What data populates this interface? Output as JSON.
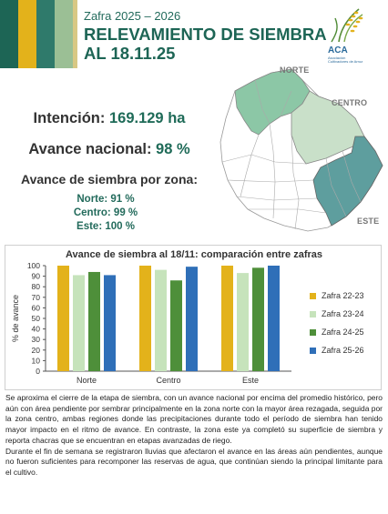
{
  "header": {
    "kicker": "Zafra 2025 – 2026",
    "title_line1": "RELEVAMIENTO DE SIEMBRA",
    "title_line2": "AL 18.11.25",
    "stripe_colors": [
      "#1d6555",
      "#e3b21b",
      "#2f7a6b",
      "#9bbf95",
      "#d8c884"
    ]
  },
  "logo": {
    "text": "ACA",
    "subtext": "Asociación Cultivadores de Arroz"
  },
  "summary": {
    "intencion_label": "Intención:",
    "intencion_value": "169.129 ha",
    "avance_label": "Avance nacional:",
    "avance_value": "98 %"
  },
  "zones": {
    "title": "Avance de siembra por zona:",
    "items": [
      {
        "label": "Norte: 91 %"
      },
      {
        "label": "Centro: 99 %"
      },
      {
        "label": "Este: 100 %"
      }
    ]
  },
  "map": {
    "labels": {
      "norte": "NORTE",
      "centro": "CENTRO",
      "este": "ESTE"
    },
    "colors": {
      "norte": "#8cc7a6",
      "centro": "#c9e0c9",
      "este": "#5e9e9e",
      "rest": "#ffffff"
    }
  },
  "chart_data": {
    "type": "bar",
    "title": "Avance de siembra al 18/11: comparación entre zafras",
    "ylabel": "% de avance",
    "xlabel": "",
    "ylim": [
      0,
      100
    ],
    "yticks": [
      0,
      10,
      20,
      30,
      40,
      50,
      60,
      70,
      80,
      90,
      100
    ],
    "categories": [
      "Norte",
      "Centro",
      "Este"
    ],
    "series": [
      {
        "name": "Zafra 22-23",
        "color": "#e3b21b",
        "values": [
          100,
          100,
          100
        ]
      },
      {
        "name": "Zafra 23-24",
        "color": "#c6e3bb",
        "values": [
          91,
          96,
          93
        ]
      },
      {
        "name": "Zafra 24-25",
        "color": "#4e8f3a",
        "values": [
          94,
          86,
          98
        ]
      },
      {
        "name": "Zafra 25-26",
        "color": "#2f6fb8",
        "values": [
          91,
          99,
          100
        ]
      }
    ]
  },
  "body": {
    "p1": "Se aproxima el cierre de la etapa de siembra, con un avance nacional por encima del promedio histórico, pero aún con área pendiente por sembrar principalmente en la zona norte con la mayor área rezagada, seguida por la zona centro, ambas regiones donde las precipitaciones durante todo el período de siembra han tenido mayor impacto en el ritmo de avance. En contraste, la zona este ya completó su superficie de siembra y reporta chacras que se encuentran en etapas avanzadas de riego.",
    "p2": "Durante el fin de semana se registraron lluvias que afectaron el avance en las áreas aún pendientes, aunque no fueron suficientes para recomponer las reservas de agua, que continúan siendo la principal limitante para el cultivo."
  }
}
